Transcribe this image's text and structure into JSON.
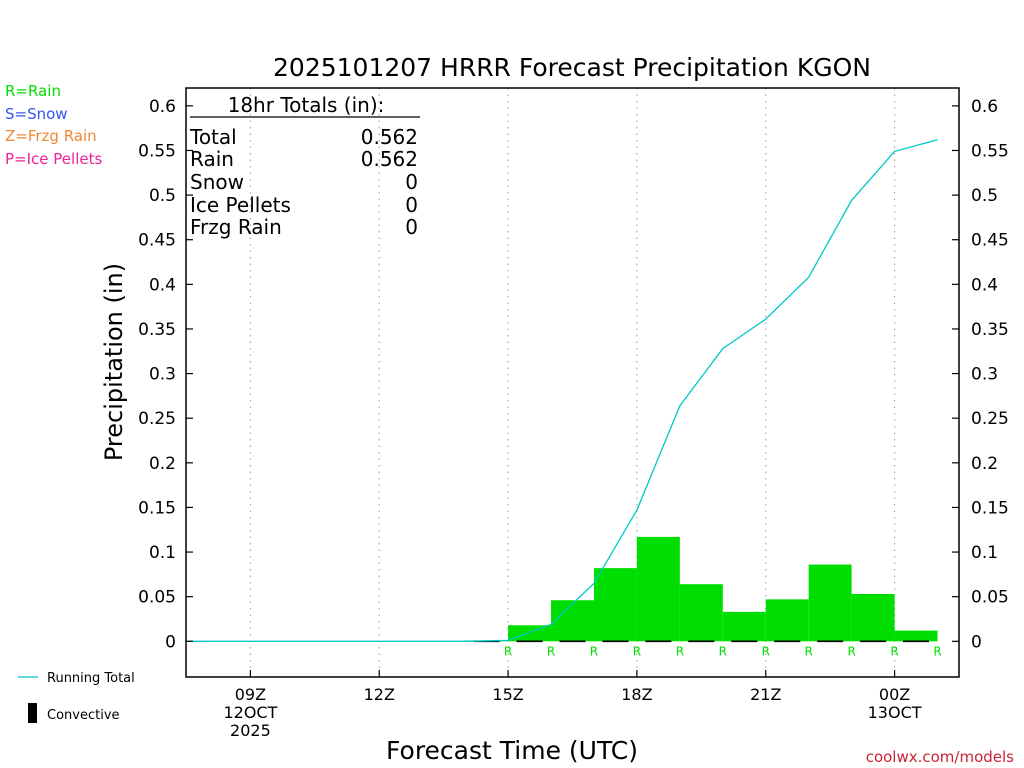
{
  "colors": {
    "rain": "#00dd00",
    "snow": "#3355ee",
    "frzg": "#ee8833",
    "ice": "#ee2299",
    "running": "#00c8c8",
    "axis": "#000000",
    "grid": "#aaaaaa",
    "credit": "#cc2233"
  },
  "legend_left": {
    "rain": "R=Rain",
    "snow": "S=Snow",
    "frzg": "Z=Frzg Rain",
    "ice": "P=Ice Pellets"
  },
  "bottom_legend": {
    "running_total": "Running Total",
    "convective": "Convective"
  },
  "credit": "coolwx.com/models",
  "totals_box": {
    "header": "18hr Totals (in):",
    "rows": [
      {
        "label": "Total",
        "value": "0.562"
      },
      {
        "label": "Rain",
        "value": "0.562"
      },
      {
        "label": "Snow",
        "value": "0"
      },
      {
        "label": "Ice Pellets",
        "value": "0"
      },
      {
        "label": "Frzg Rain",
        "value": "0"
      }
    ]
  },
  "chart_data": {
    "type": "bar",
    "title": "2025101207 HRRR Forecast Precipitation KGON",
    "xlabel": "Forecast Time (UTC)",
    "ylabel": "Precipitation (in)",
    "ylim": [
      -0.04,
      0.62
    ],
    "y_ticks": [
      "0",
      "0.05",
      "0.1",
      "0.15",
      "0.2",
      "0.25",
      "0.3",
      "0.35",
      "0.4",
      "0.45",
      "0.5",
      "0.55",
      "0.6"
    ],
    "x_range_hours": [
      7.5,
      25.5
    ],
    "x_ticks": [
      {
        "hour": 9,
        "lines": [
          "09Z",
          "12OCT",
          "2025"
        ]
      },
      {
        "hour": 12,
        "lines": [
          "12Z"
        ]
      },
      {
        "hour": 15,
        "lines": [
          "15Z"
        ]
      },
      {
        "hour": 18,
        "lines": [
          "18Z"
        ]
      },
      {
        "hour": 21,
        "lines": [
          "21Z"
        ]
      },
      {
        "hour": 24,
        "lines": [
          "00Z",
          "13OCT"
        ]
      }
    ],
    "hours": [
      8,
      9,
      10,
      11,
      12,
      13,
      14,
      15,
      16,
      17,
      18,
      19,
      20,
      21,
      22,
      23,
      24,
      25
    ],
    "hourly_precip": [
      0,
      0,
      0,
      0,
      0,
      0,
      0,
      0.001,
      0.018,
      0.046,
      0.082,
      0.117,
      0.064,
      0.033,
      0.047,
      0.086,
      0.053,
      0.012
    ],
    "convective": [
      0,
      0,
      0,
      0,
      0,
      0,
      0,
      0,
      0,
      0,
      0,
      0,
      0,
      0,
      0,
      0,
      0,
      0
    ],
    "running_total": [
      0,
      0,
      0,
      0,
      0,
      0,
      0,
      0.001,
      0.019,
      0.065,
      0.147,
      0.264,
      0.328,
      0.361,
      0.408,
      0.494,
      0.549,
      0.562
    ],
    "ptype": [
      "",
      "",
      "",
      "",
      "",
      "",
      "",
      "R",
      "R",
      "R",
      "R",
      "R",
      "R",
      "R",
      "R",
      "R",
      "R",
      "R"
    ],
    "series": [
      {
        "name": "Rain (hourly)",
        "values": [
          0,
          0,
          0,
          0,
          0,
          0,
          0,
          0.001,
          0.018,
          0.046,
          0.082,
          0.117,
          0.064,
          0.033,
          0.047,
          0.086,
          0.053,
          0.012
        ]
      },
      {
        "name": "Running Total",
        "values": [
          0,
          0,
          0,
          0,
          0,
          0,
          0,
          0.001,
          0.019,
          0.065,
          0.147,
          0.264,
          0.328,
          0.361,
          0.408,
          0.494,
          0.549,
          0.562
        ]
      }
    ]
  }
}
